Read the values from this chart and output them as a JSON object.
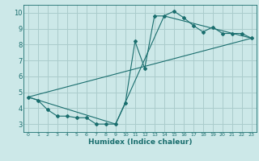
{
  "xlabel": "Humidex (Indice chaleur)",
  "ylabel": "",
  "bg_color": "#cce8e8",
  "grid_color": "#aacccc",
  "line_color": "#1a6e6e",
  "xlim": [
    -0.5,
    23.5
  ],
  "ylim": [
    2.5,
    10.5
  ],
  "xticks": [
    0,
    1,
    2,
    3,
    4,
    5,
    6,
    7,
    8,
    9,
    10,
    11,
    12,
    13,
    14,
    15,
    16,
    17,
    18,
    19,
    20,
    21,
    22,
    23
  ],
  "yticks": [
    3,
    4,
    5,
    6,
    7,
    8,
    9,
    10
  ],
  "series1_x": [
    0,
    1,
    2,
    3,
    4,
    5,
    6,
    7,
    8,
    9,
    10,
    11,
    12,
    13,
    14,
    15,
    16,
    17,
    18,
    19,
    20,
    21,
    22,
    23
  ],
  "series1_y": [
    4.7,
    4.5,
    3.9,
    3.5,
    3.5,
    3.4,
    3.4,
    3.0,
    3.0,
    3.0,
    4.3,
    8.2,
    6.5,
    9.8,
    9.8,
    10.1,
    9.7,
    9.2,
    8.8,
    9.1,
    8.7,
    8.7,
    8.7,
    8.4
  ],
  "series2_x": [
    0,
    23
  ],
  "series2_y": [
    4.7,
    8.4
  ],
  "series3_x": [
    0,
    9,
    14,
    23
  ],
  "series3_y": [
    4.7,
    3.0,
    9.8,
    8.4
  ],
  "figwidth": 3.2,
  "figheight": 2.0,
  "dpi": 100
}
